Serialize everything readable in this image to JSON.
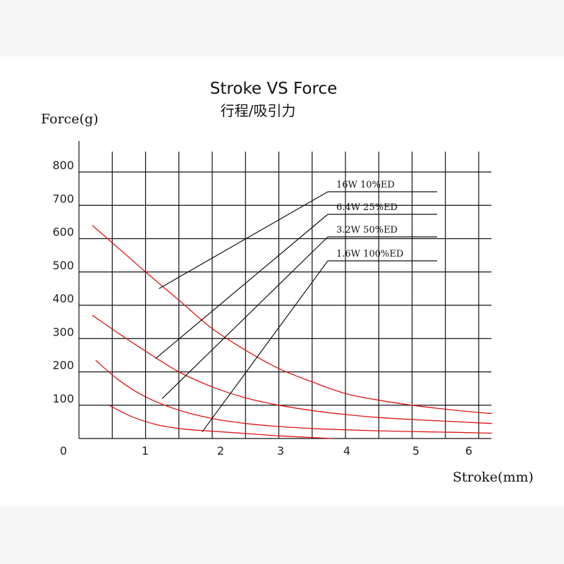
{
  "chart_data": {
    "type": "line",
    "title": "Stroke VS  Force",
    "subtitle": "行程/吸引力",
    "xlabel": "Stroke(mm)",
    "ylabel": "Force(g)",
    "xlim": [
      0,
      6.3
    ],
    "ylim": [
      0,
      800
    ],
    "x_ticks": [
      "0",
      "1",
      "2",
      "3",
      "4",
      "5",
      "6"
    ],
    "y_ticks": [
      "100",
      "200",
      "300",
      "400",
      "500",
      "600",
      "700",
      "800"
    ],
    "grid": true,
    "series": [
      {
        "name": "16W   10%ED",
        "color": "#e01414",
        "x": [
          0.2,
          0.6,
          1.0,
          1.5,
          2.0,
          2.5,
          3.0,
          3.5,
          4.0,
          4.5,
          5.0,
          5.5,
          6.0,
          6.2
        ],
        "y": [
          640,
          570,
          500,
          415,
          330,
          265,
          210,
          170,
          135,
          115,
          100,
          88,
          78,
          75
        ]
      },
      {
        "name": "6.4W  25%ED",
        "color": "#e01414",
        "x": [
          0.2,
          0.6,
          1.0,
          1.5,
          2.0,
          2.5,
          3.0,
          3.5,
          4.0,
          4.5,
          5.0,
          5.5,
          6.0,
          6.2
        ],
        "y": [
          370,
          315,
          262,
          200,
          155,
          122,
          100,
          84,
          72,
          63,
          57,
          52,
          47,
          45
        ]
      },
      {
        "name": "3.2W  50%ED",
        "color": "#e01414",
        "x": [
          0.25,
          0.6,
          1.0,
          1.5,
          2.0,
          2.5,
          3.0,
          3.5,
          4.0,
          4.5,
          5.0,
          5.5,
          6.0,
          6.2
        ],
        "y": [
          235,
          175,
          125,
          85,
          60,
          45,
          36,
          30,
          26,
          23,
          21,
          19,
          17,
          16
        ]
      },
      {
        "name": "1.6W  100%ED",
        "color": "#e01414",
        "x": [
          0.45,
          0.8,
          1.2,
          1.6,
          2.0,
          2.5,
          3.0,
          3.5,
          3.8
        ],
        "y": [
          100,
          65,
          40,
          28,
          22,
          15,
          8,
          3,
          0
        ]
      }
    ],
    "legend": "top-right"
  }
}
